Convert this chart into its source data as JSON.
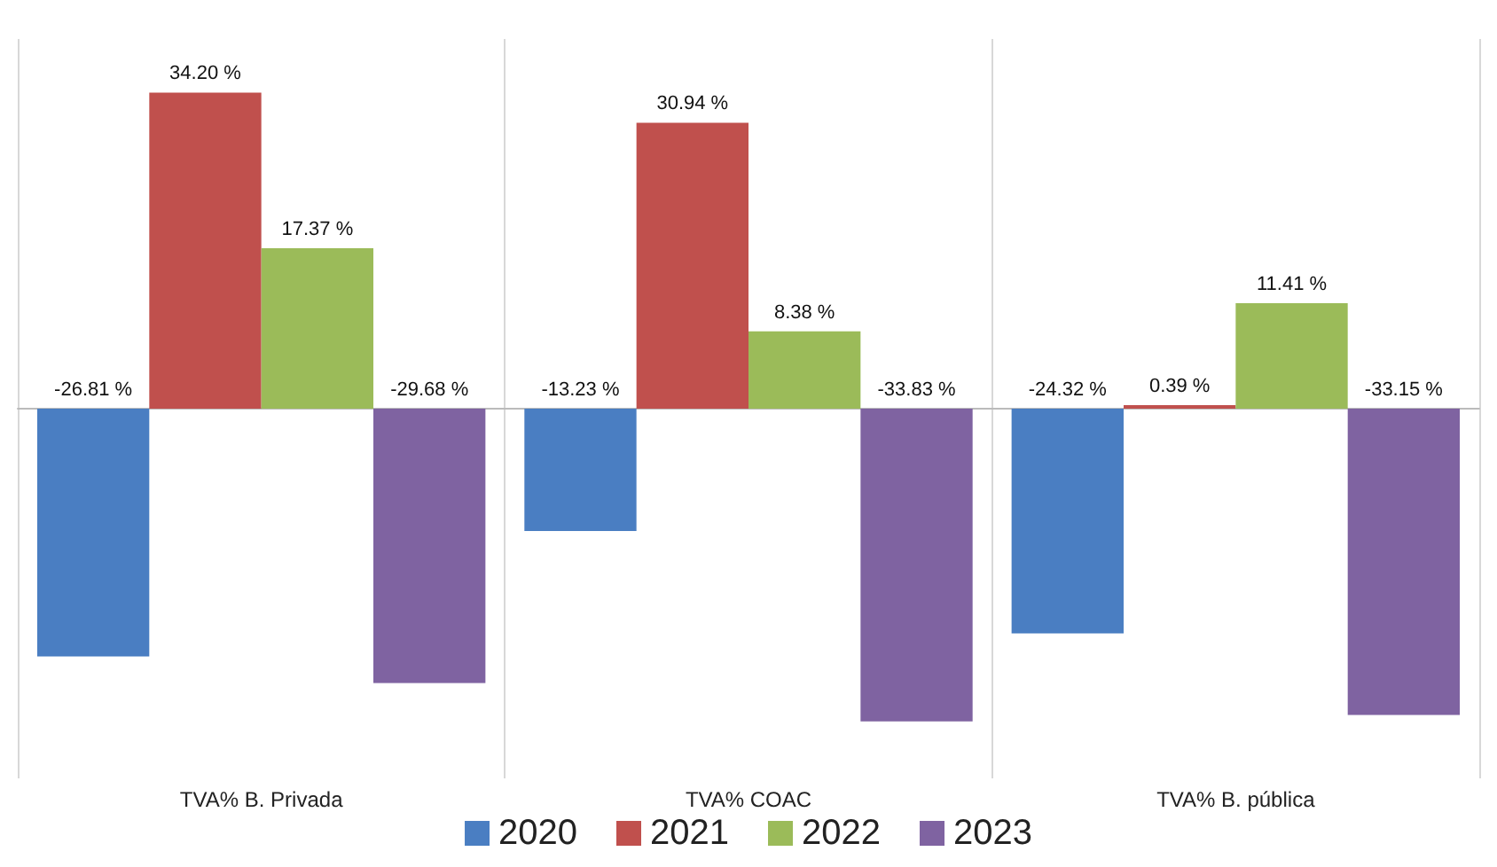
{
  "chart_data": {
    "type": "bar",
    "categories": [
      "TVA% B. Privada",
      "TVA% COAC",
      "TVA% B. pública"
    ],
    "series": [
      {
        "name": "2020",
        "color": "#4a7ec2",
        "values": [
          -26.81,
          -13.23,
          -24.32
        ],
        "value_labels": [
          "-26.81 %",
          "-13.23 %",
          "-24.32 %"
        ]
      },
      {
        "name": "2021",
        "color": "#c0504d",
        "values": [
          34.2,
          30.94,
          0.39
        ],
        "value_labels": [
          "34.20 %",
          "30.94 %",
          "0.39 %"
        ]
      },
      {
        "name": "2022",
        "color": "#9bbb59",
        "values": [
          17.37,
          8.38,
          11.41
        ],
        "value_labels": [
          "17.37 %",
          "8.38 %",
          "11.41 %"
        ]
      },
      {
        "name": "2023",
        "color": "#7f63a1",
        "values": [
          -29.68,
          -33.83,
          -33.15
        ],
        "value_labels": [
          "-29.68 %",
          "-33.83 %",
          "-33.15 %"
        ]
      }
    ],
    "grid": "x",
    "legend": "bottom"
  }
}
